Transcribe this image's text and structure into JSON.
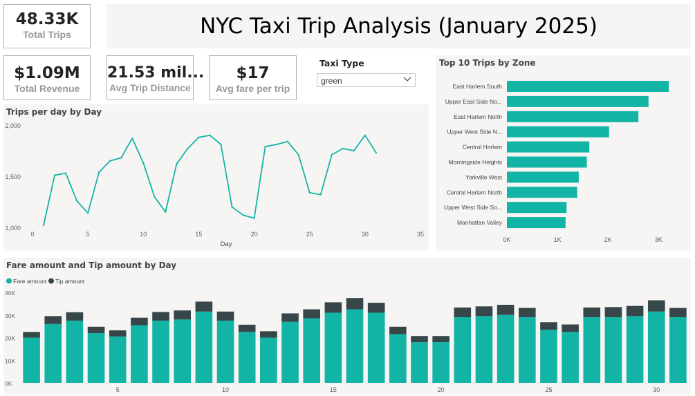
{
  "title": "NYC Taxi Trip Analysis (January 2025)",
  "kpis": {
    "total_trips": {
      "value": "48.33K",
      "label": "Total Trips"
    },
    "total_revenue": {
      "value": "$1.09M",
      "label": "Total Revenue"
    },
    "avg_trip_distance": {
      "value": "21.53 mil...",
      "label": "Avg Trip Distance"
    },
    "avg_fare": {
      "value": "$17",
      "label": "Avg fare per trip"
    }
  },
  "slicer": {
    "title": "Taxi Type",
    "value": "green",
    "icon": "chevron-down-icon"
  },
  "colors": {
    "teal": "#12b5a5",
    "dark": "#374649",
    "panel": "#f6f5f4"
  },
  "chart_data": [
    {
      "type": "line",
      "title": "Trips per day by Day",
      "xlabel": "Day",
      "ylabel": "",
      "xlim": [
        0,
        35
      ],
      "ylim": [
        1000,
        2000
      ],
      "x_ticks": [
        "0",
        "5",
        "10",
        "15",
        "20",
        "25",
        "30",
        "35"
      ],
      "y_ticks": [
        "1,000",
        "1,500",
        "2,000"
      ],
      "x": [
        1,
        2,
        3,
        4,
        5,
        6,
        7,
        8,
        9,
        10,
        11,
        12,
        13,
        14,
        15,
        16,
        17,
        18,
        19,
        20,
        21,
        22,
        23,
        24,
        25,
        26,
        27,
        28,
        29,
        30,
        31
      ],
      "values": [
        1020,
        1510,
        1530,
        1260,
        1140,
        1540,
        1650,
        1680,
        1870,
        1630,
        1300,
        1150,
        1620,
        1770,
        1880,
        1900,
        1810,
        1200,
        1120,
        1090,
        1790,
        1810,
        1840,
        1710,
        1340,
        1320,
        1710,
        1770,
        1750,
        1900,
        1730
      ]
    },
    {
      "type": "bar",
      "orientation": "horizontal",
      "title": "Top 10 Trips by Zone",
      "categories": [
        "East Harlem South",
        "Upper East Side No...",
        "East Harlem North",
        "Upper West Side N...",
        "Central Harlem",
        "Morningside Heights",
        "Yorkville West",
        "Central Harlem North",
        "Upper West Side So...",
        "Manhattan Valley"
      ],
      "values": [
        3200,
        2800,
        2600,
        2020,
        1630,
        1580,
        1420,
        1390,
        1180,
        1160
      ],
      "xlim": [
        0,
        3500
      ],
      "x_ticks": [
        "0K",
        "1K",
        "2K",
        "3K"
      ]
    },
    {
      "type": "bar",
      "stacked": true,
      "title": "Fare amount and Tip amount by Day",
      "legend": "top-left",
      "categories": [
        1,
        2,
        3,
        4,
        5,
        6,
        7,
        8,
        9,
        10,
        11,
        12,
        13,
        14,
        15,
        16,
        17,
        18,
        19,
        20,
        21,
        22,
        23,
        24,
        25,
        26,
        27,
        28,
        29,
        30,
        31
      ],
      "x_ticks": [
        "5",
        "10",
        "15",
        "20",
        "25",
        "30"
      ],
      "y_ticks": [
        "0K",
        "10K",
        "20K",
        "30K",
        "40K"
      ],
      "ylim": [
        0,
        40000
      ],
      "series": [
        {
          "name": "Fare amount",
          "values": [
            20000,
            26000,
            27500,
            22000,
            20500,
            25500,
            27500,
            28000,
            31500,
            27500,
            22500,
            20000,
            27000,
            28500,
            31000,
            32500,
            31000,
            21500,
            18000,
            18000,
            29000,
            29500,
            30000,
            29000,
            23500,
            22500,
            29000,
            29000,
            29500,
            31500,
            29000
          ]
        },
        {
          "name": "Tip amount",
          "values": [
            2500,
            3500,
            3700,
            2800,
            2700,
            3300,
            3800,
            4000,
            4400,
            4000,
            3200,
            2800,
            3700,
            4000,
            4600,
            5000,
            4400,
            3300,
            2700,
            2700,
            4300,
            4300,
            4500,
            4100,
            3300,
            3300,
            4300,
            4500,
            4500,
            5000,
            4100
          ]
        }
      ]
    }
  ]
}
